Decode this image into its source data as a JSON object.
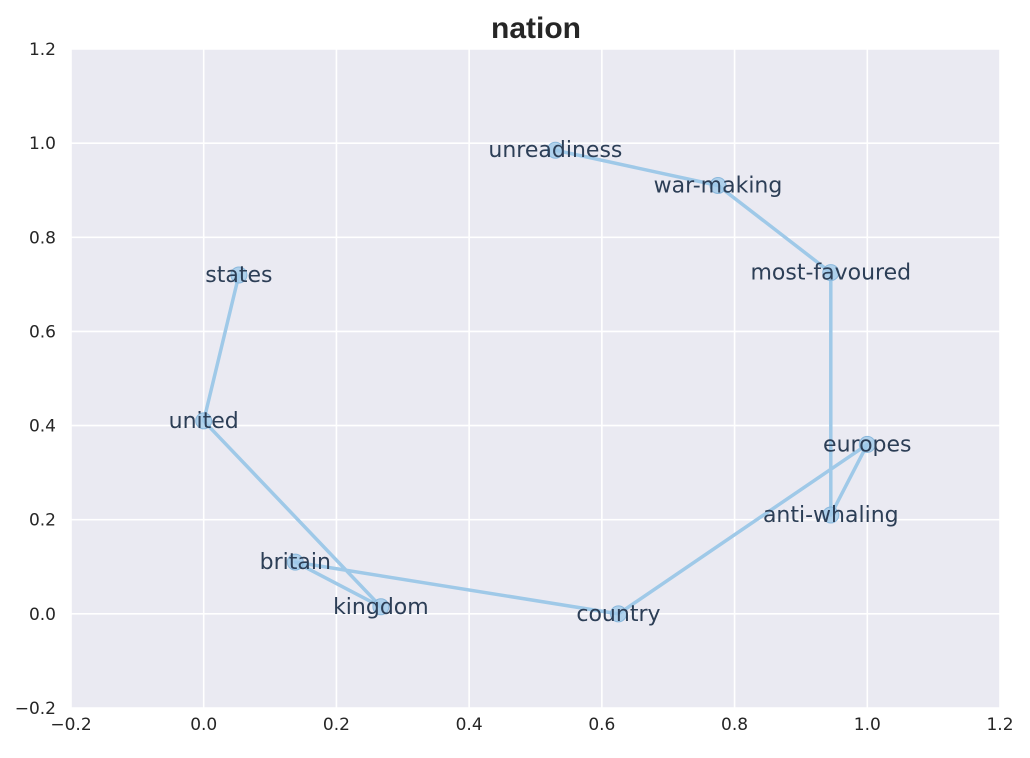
{
  "chart_data": {
    "type": "line",
    "title": "nation",
    "xlabel": "",
    "ylabel": "",
    "xlim": [
      -0.2,
      1.2
    ],
    "ylim": [
      -0.2,
      1.2
    ],
    "xticks": [
      "−0.2",
      "0.0",
      "0.2",
      "0.4",
      "0.6",
      "0.8",
      "1.0",
      "1.2"
    ],
    "yticks": [
      "−0.2",
      "0.0",
      "0.2",
      "0.4",
      "0.6",
      "0.8",
      "1.0",
      "1.2"
    ],
    "grid": true,
    "series": [
      {
        "points": [
          {
            "label": "states",
            "x": 0.053,
            "y": 0.72
          },
          {
            "label": "united",
            "x": 0.0,
            "y": 0.41
          },
          {
            "label": "kingdom",
            "x": 0.267,
            "y": 0.015
          },
          {
            "label": "britain",
            "x": 0.138,
            "y": 0.11
          },
          {
            "label": "country",
            "x": 0.625,
            "y": 0.0
          },
          {
            "label": "europes",
            "x": 1.0,
            "y": 0.36
          },
          {
            "label": "anti-whaling",
            "x": 0.945,
            "y": 0.21
          },
          {
            "label": "most-favoured",
            "x": 0.945,
            "y": 0.725
          },
          {
            "label": "war-making",
            "x": 0.775,
            "y": 0.91
          },
          {
            "label": "unreadiness",
            "x": 0.53,
            "y": 0.985
          }
        ]
      }
    ]
  },
  "colors": {
    "plot_background": "#eaeaf2",
    "grid": "#ffffff",
    "line": "#9fc9e8",
    "marker": "#9fc9e8",
    "marker_edge": "#8ab8dc",
    "label_text": "#2c3e56",
    "tick_text": "#262626"
  }
}
